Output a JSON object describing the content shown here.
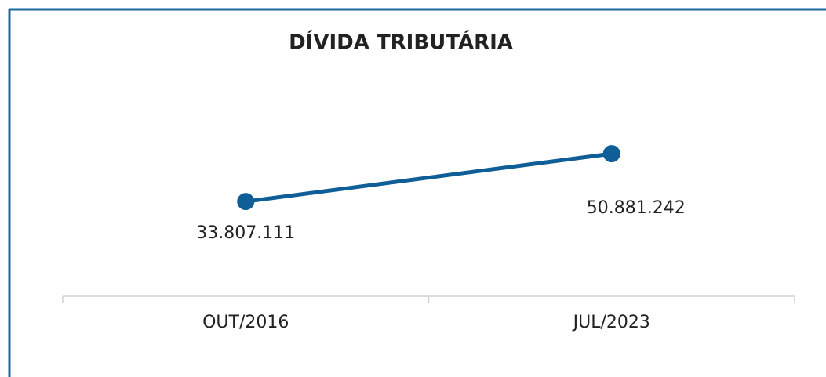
{
  "chart_data": {
    "type": "line",
    "title": "DÍVIDA TRIBUTÁRIA",
    "categories": [
      "OUT/2016",
      "JUL/2023"
    ],
    "series": [
      {
        "name": "DÍVIDA TRIBUTÁRIA",
        "color": "#0f5e97",
        "values": [
          33807111,
          50881242
        ],
        "value_labels": [
          "33.807.111",
          "50.881.242"
        ]
      }
    ],
    "ylim": [
      0,
      80000000
    ]
  }
}
